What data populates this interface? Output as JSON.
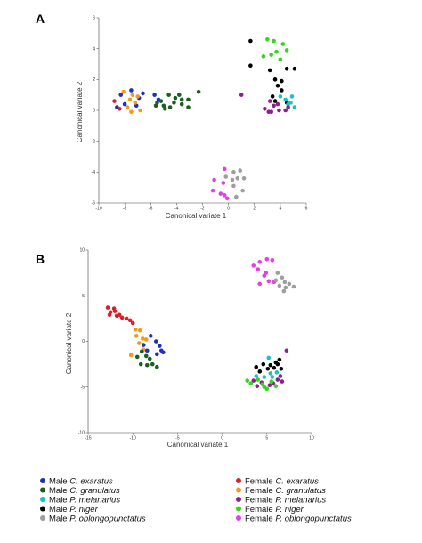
{
  "colors": {
    "male_exaratus": "#1f2fbf",
    "male_granulatus": "#1b5e20",
    "male_melanarius": "#19c3c0",
    "male_niger": "#000000",
    "male_oblongopunctatus": "#9e9e9e",
    "female_exaratus": "#d8202a",
    "female_granulatus": "#f29a1a",
    "female_melanarius": "#8e1f8f",
    "female_niger": "#36d41f",
    "female_oblongopunctatus": "#e63ee6"
  },
  "legend": [
    {
      "key": "male_exaratus",
      "sex": "Male ",
      "species": "C. exaratus"
    },
    {
      "key": "male_granulatus",
      "sex": "Male ",
      "species": "C. granulatus"
    },
    {
      "key": "male_melanarius",
      "sex": "Male ",
      "species": "P. melanarius"
    },
    {
      "key": "male_niger",
      "sex": "Male ",
      "species": "P. niger"
    },
    {
      "key": "male_oblongopunctatus",
      "sex": "Male ",
      "species": "P. oblongopunctatus"
    },
    {
      "key": "female_exaratus",
      "sex": "Female ",
      "species": "C. exaratus"
    },
    {
      "key": "female_granulatus",
      "sex": "Female ",
      "species": "C. granulatus"
    },
    {
      "key": "female_melanarius",
      "sex": "Female ",
      "species": "P. melanarius"
    },
    {
      "key": "female_niger",
      "sex": "Female ",
      "species": "P. niger"
    },
    {
      "key": "female_oblongopunctatus",
      "sex": "Female ",
      "species": "P. oblongopunctatus"
    }
  ],
  "chart_data": [
    {
      "panel": "A",
      "type": "scatter",
      "xlabel": "Canonical variate 1",
      "ylabel": "Canonical variate 2",
      "xlim": [
        -10,
        6
      ],
      "ylim": [
        -6,
        6
      ],
      "xticks": [
        -10,
        -8,
        -6,
        -4,
        -2,
        0,
        2,
        4,
        6
      ],
      "yticks": [
        -6,
        -4,
        -2,
        0,
        2,
        4,
        6
      ],
      "grid": false,
      "series": [
        {
          "key": "male_exaratus",
          "name": "Male C. exaratus",
          "points": [
            [
              -8.3,
              1.0
            ],
            [
              -7.5,
              1.3
            ],
            [
              -6.9,
              0.8
            ],
            [
              -6.6,
              1.1
            ],
            [
              -8.0,
              0.4
            ],
            [
              -7.1,
              0.3
            ],
            [
              -5.7,
              1.0
            ],
            [
              -5.4,
              0.7
            ],
            [
              -8.6,
              0.2
            ]
          ]
        },
        {
          "key": "female_exaratus",
          "name": "Female C. exaratus",
          "points": [
            [
              -8.8,
              0.6
            ],
            [
              -8.4,
              0.1
            ]
          ]
        },
        {
          "key": "female_granulatus",
          "name": "Female C. granulatus",
          "points": [
            [
              -8.1,
              1.2
            ],
            [
              -7.6,
              0.7
            ],
            [
              -7.8,
              0.2
            ],
            [
              -7.5,
              -0.1
            ],
            [
              -7.0,
              0.9
            ],
            [
              -7.2,
              0.5
            ],
            [
              -6.8,
              0.0
            ],
            [
              -7.4,
              1.0
            ]
          ]
        },
        {
          "key": "male_granulatus",
          "name": "Male C. granulatus",
          "points": [
            [
              -4.6,
              1.0
            ],
            [
              -4.1,
              0.8
            ],
            [
              -3.8,
              1.0
            ],
            [
              -3.6,
              0.7
            ],
            [
              -4.2,
              0.5
            ],
            [
              -3.6,
              0.4
            ],
            [
              -3.1,
              0.7
            ],
            [
              -3.1,
              0.2
            ],
            [
              -5.2,
              0.6
            ],
            [
              -5.5,
              0.5
            ],
            [
              -5.0,
              0.3
            ],
            [
              -4.9,
              0.1
            ],
            [
              -4.5,
              0.2
            ],
            [
              -5.6,
              0.3
            ],
            [
              -2.3,
              1.2
            ]
          ]
        },
        {
          "key": "female_niger",
          "name": "Female P. niger",
          "points": [
            [
              3.0,
              4.6
            ],
            [
              3.5,
              4.5
            ],
            [
              3.7,
              3.8
            ],
            [
              4.2,
              4.3
            ],
            [
              4.5,
              3.9
            ],
            [
              3.3,
              3.6
            ],
            [
              2.7,
              3.5
            ],
            [
              4.0,
              3.3
            ]
          ]
        },
        {
          "key": "male_niger",
          "name": "Male P. niger",
          "points": [
            [
              1.7,
              4.5
            ],
            [
              1.7,
              2.9
            ],
            [
              3.2,
              2.6
            ],
            [
              3.6,
              2.0
            ],
            [
              4.1,
              1.9
            ],
            [
              4.5,
              2.7
            ],
            [
              4.1,
              1.3
            ],
            [
              3.4,
              0.9
            ],
            [
              3.6,
              0.6
            ],
            [
              4.5,
              0.5
            ],
            [
              5.1,
              2.7
            ],
            [
              3.8,
              1.6
            ]
          ]
        },
        {
          "key": "male_melanarius",
          "name": "Male P. melanarius",
          "points": [
            [
              4.0,
              0.9
            ],
            [
              4.4,
              0.7
            ],
            [
              4.9,
              0.9
            ],
            [
              4.8,
              0.5
            ],
            [
              5.1,
              0.2
            ],
            [
              4.6,
              0.4
            ]
          ]
        },
        {
          "key": "female_melanarius",
          "name": "Female P. melanarius",
          "points": [
            [
              1.0,
              1.0
            ],
            [
              3.2,
              0.6
            ],
            [
              3.5,
              0.3
            ],
            [
              3.3,
              -0.1
            ],
            [
              3.8,
              0.4
            ],
            [
              3.9,
              0.0
            ],
            [
              4.4,
              0.0
            ],
            [
              4.6,
              0.2
            ],
            [
              2.8,
              0.1
            ],
            [
              3.1,
              -0.1
            ]
          ]
        },
        {
          "key": "male_oblongopunctatus",
          "name": "Male P. oblongopunctatus",
          "points": [
            [
              0.4,
              -4.0
            ],
            [
              0.9,
              -3.9
            ],
            [
              0.3,
              -4.5
            ],
            [
              0.7,
              -4.4
            ],
            [
              0.4,
              -4.9
            ],
            [
              0.6,
              -5.6
            ],
            [
              1.1,
              -5.2
            ],
            [
              1.2,
              -4.4
            ],
            [
              -0.2,
              -4.3
            ]
          ]
        },
        {
          "key": "female_oblongopunctatus",
          "name": "Female P. oblongopunctatus",
          "points": [
            [
              -0.3,
              -3.8
            ],
            [
              -1.1,
              -4.5
            ],
            [
              -0.4,
              -4.7
            ],
            [
              -1.2,
              -5.2
            ],
            [
              -0.6,
              -5.4
            ],
            [
              -0.3,
              -5.5
            ],
            [
              -0.1,
              -5.7
            ]
          ]
        }
      ]
    },
    {
      "panel": "B",
      "type": "scatter",
      "xlabel": "Canonical variate 1",
      "ylabel": "Canonical variate 2",
      "xlim": [
        -15,
        10
      ],
      "ylim": [
        -10,
        10
      ],
      "xticks": [
        -15,
        -10,
        -5,
        0,
        5,
        10
      ],
      "yticks": [
        -10,
        -5,
        0,
        5,
        10
      ],
      "grid": false,
      "series": [
        {
          "key": "female_exaratus",
          "name": "Female C. exaratus",
          "points": [
            [
              -12.8,
              3.7
            ],
            [
              -12.5,
              3.2
            ],
            [
              -12.0,
              3.3
            ],
            [
              -11.8,
              2.8
            ],
            [
              -11.2,
              2.6
            ],
            [
              -10.7,
              2.5
            ],
            [
              -10.3,
              2.3
            ],
            [
              -11.5,
              2.9
            ],
            [
              -12.1,
              3.6
            ],
            [
              -10.0,
              2.0
            ],
            [
              -12.6,
              2.9
            ]
          ]
        },
        {
          "key": "female_granulatus",
          "name": "Female C. granulatus",
          "points": [
            [
              -9.7,
              1.3
            ],
            [
              -9.2,
              1.2
            ],
            [
              -9.6,
              0.6
            ],
            [
              -8.9,
              0.3
            ],
            [
              -8.5,
              0.2
            ],
            [
              -9.3,
              -0.2
            ],
            [
              -10.2,
              -1.5
            ],
            [
              -8.8,
              -0.9
            ]
          ]
        },
        {
          "key": "male_exaratus",
          "name": "Male C. exaratus",
          "points": [
            [
              -8.8,
              -0.4
            ],
            [
              -8.0,
              0.6
            ],
            [
              -7.4,
              0.0
            ],
            [
              -7.0,
              -0.5
            ],
            [
              -6.8,
              -1.0
            ],
            [
              -7.3,
              -1.4
            ],
            [
              -6.6,
              -1.2
            ],
            [
              -8.4,
              -1.0
            ]
          ]
        },
        {
          "key": "male_granulatus",
          "name": "Male C. granulatus",
          "points": [
            [
              -9.5,
              -1.7
            ],
            [
              -9.0,
              -1.1
            ],
            [
              -8.5,
              -1.6
            ],
            [
              -9.1,
              -2.5
            ],
            [
              -8.1,
              -1.9
            ],
            [
              -7.8,
              -2.5
            ],
            [
              -7.3,
              -2.8
            ],
            [
              -8.4,
              -2.6
            ]
          ]
        },
        {
          "key": "female_oblongopunctatus",
          "name": "Female P. oblongopunctatus",
          "points": [
            [
              3.5,
              8.3
            ],
            [
              4.2,
              8.7
            ],
            [
              5.0,
              9.0
            ],
            [
              5.6,
              8.9
            ],
            [
              4.0,
              7.9
            ],
            [
              4.9,
              7.5
            ],
            [
              5.2,
              6.6
            ],
            [
              4.2,
              6.3
            ],
            [
              5.8,
              6.5
            ],
            [
              4.7,
              7.2
            ]
          ]
        },
        {
          "key": "male_oblongopunctatus",
          "name": "Male P. oblongopunctatus",
          "points": [
            [
              6.2,
              7.5
            ],
            [
              6.7,
              7.0
            ],
            [
              7.0,
              6.5
            ],
            [
              7.5,
              6.3
            ],
            [
              7.1,
              5.9
            ],
            [
              6.4,
              6.1
            ],
            [
              8.0,
              6.0
            ],
            [
              6.9,
              5.5
            ],
            [
              6.0,
              6.7
            ]
          ]
        },
        {
          "key": "male_niger",
          "name": "Male P. niger",
          "points": [
            [
              3.8,
              -2.8
            ],
            [
              4.6,
              -2.5
            ],
            [
              5.4,
              -2.6
            ],
            [
              6.0,
              -2.3
            ],
            [
              6.4,
              -2.0
            ],
            [
              5.8,
              -2.9
            ],
            [
              4.2,
              -3.3
            ],
            [
              5.1,
              -3.0
            ],
            [
              6.6,
              -3.0
            ],
            [
              6.2,
              -2.5
            ]
          ]
        },
        {
          "key": "male_melanarius",
          "name": "Male P. melanarius",
          "points": [
            [
              5.2,
              -1.8
            ],
            [
              6.1,
              -3.4
            ],
            [
              5.4,
              -3.5
            ],
            [
              3.8,
              -3.8
            ],
            [
              4.7,
              -3.9
            ],
            [
              5.6,
              -3.9
            ]
          ]
        },
        {
          "key": "female_melanarius",
          "name": "Female P. melanarius",
          "points": [
            [
              7.2,
              -1.0
            ],
            [
              3.5,
              -4.3
            ],
            [
              3.9,
              -4.9
            ],
            [
              5.7,
              -4.6
            ],
            [
              6.2,
              -4.2
            ],
            [
              6.7,
              -4.4
            ],
            [
              4.4,
              -4.5
            ],
            [
              5.3,
              -4.8
            ],
            [
              6.5,
              -3.8
            ]
          ]
        },
        {
          "key": "female_niger",
          "name": "Female P. niger",
          "points": [
            [
              2.8,
              -4.3
            ],
            [
              4.0,
              -4.2
            ],
            [
              4.7,
              -5.0
            ],
            [
              5.0,
              -5.2
            ],
            [
              5.5,
              -4.4
            ],
            [
              3.2,
              -4.6
            ],
            [
              4.5,
              -4.7
            ],
            [
              6.0,
              -4.9
            ]
          ]
        }
      ]
    }
  ]
}
